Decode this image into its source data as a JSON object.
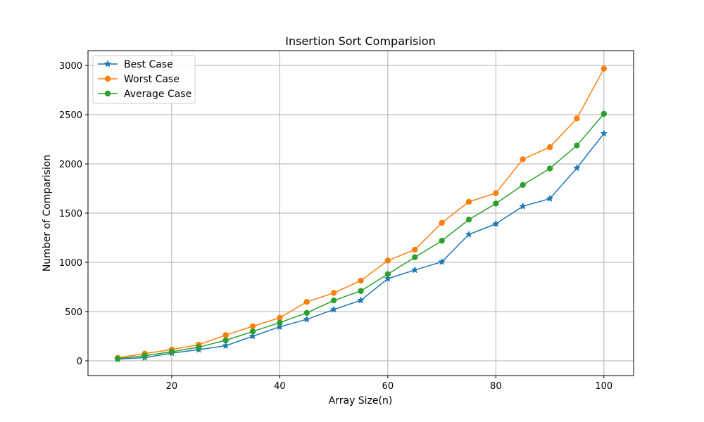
{
  "chart_data": {
    "type": "line",
    "title": "Insertion Sort Comparision",
    "xlabel": "Array Size(n)",
    "ylabel": "Number of Comparision",
    "xlim": [
      4.5,
      105.5
    ],
    "ylim": [
      -150,
      3150
    ],
    "xticks": [
      20,
      40,
      60,
      80,
      100
    ],
    "yticks": [
      0,
      500,
      1000,
      1500,
      2000,
      2500,
      3000
    ],
    "grid": true,
    "legend_position": "upper-left",
    "x": [
      10,
      15,
      20,
      25,
      30,
      35,
      40,
      45,
      50,
      55,
      60,
      65,
      70,
      75,
      80,
      85,
      90,
      95,
      100
    ],
    "series": [
      {
        "name": "Best Case",
        "color": "#1f77b4",
        "marker": "star",
        "values": [
          17,
          32,
          78,
          113,
          153,
          250,
          345,
          421,
          521,
          614,
          834,
          922,
          1005,
          1283,
          1391,
          1569,
          1647,
          1958,
          2309
        ]
      },
      {
        "name": "Worst Case",
        "color": "#ff7f0e",
        "marker": "circle",
        "values": [
          30,
          73,
          114,
          164,
          261,
          351,
          437,
          598,
          690,
          814,
          1018,
          1128,
          1401,
          1615,
          1703,
          2047,
          2170,
          2461,
          2967
        ]
      },
      {
        "name": "Average Case",
        "color": "#2ca02c",
        "marker": "circle",
        "values": [
          22,
          52,
          92,
          139,
          208,
          298,
          388,
          487,
          613,
          709,
          880,
          1052,
          1219,
          1434,
          1597,
          1786,
          1953,
          2187,
          2508
        ]
      }
    ]
  }
}
